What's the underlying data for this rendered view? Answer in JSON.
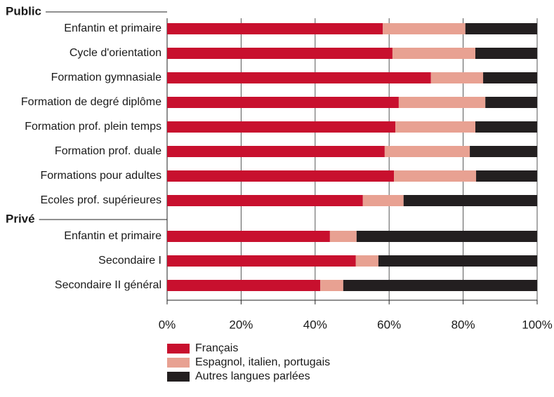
{
  "chart_data": {
    "type": "stacked_barh",
    "groups": [
      {
        "label": "Public",
        "categories": [
          "Enfantin et primaire",
          "Cycle d'orientation",
          "Formation gymnasiale",
          "Formation de degré diplôme",
          "Formation prof. plein temps",
          "Formation prof. duale",
          "Formations pour adultes",
          "Ecoles prof. supérieures"
        ]
      },
      {
        "label": "Privé",
        "categories": [
          "Enfantin et primaire",
          "Secondaire I",
          "Secondaire II général"
        ]
      }
    ],
    "series": [
      {
        "name": "Français",
        "color": "#c8102e",
        "values": [
          58.3,
          60.9,
          71.3,
          62.6,
          61.7,
          58.8,
          61.3,
          52.9,
          44.0,
          51.0,
          41.4
        ]
      },
      {
        "name": "Espagnol, italien, portugais",
        "color": "#e8a192",
        "values": [
          22.3,
          22.4,
          14.1,
          23.4,
          21.6,
          23.0,
          22.2,
          11.0,
          7.2,
          6.1,
          6.2
        ]
      },
      {
        "name": "Autres langues parlées",
        "color": "#231f20",
        "values": [
          19.4,
          16.7,
          14.6,
          14.0,
          16.7,
          18.2,
          16.5,
          36.1,
          48.8,
          42.9,
          52.4
        ]
      }
    ],
    "xlim": [
      0,
      100
    ],
    "xticks": [
      {
        "value": 0,
        "label": "0%"
      },
      {
        "value": 20,
        "label": "20%"
      },
      {
        "value": 40,
        "label": "40%"
      },
      {
        "value": 60,
        "label": "60%"
      },
      {
        "value": 80,
        "label": "80%"
      },
      {
        "value": 100,
        "label": "100%"
      }
    ],
    "grid": true
  }
}
